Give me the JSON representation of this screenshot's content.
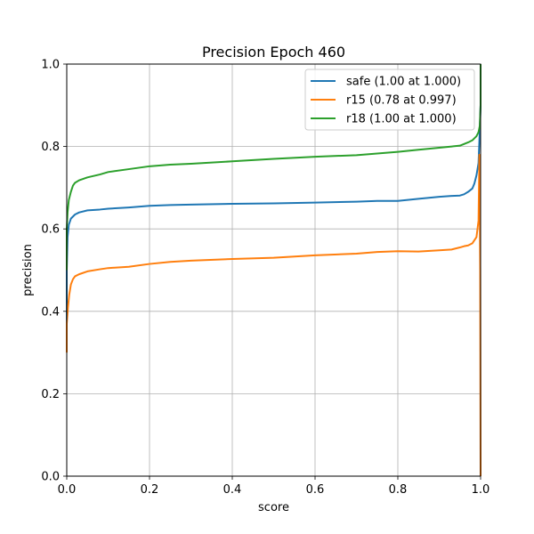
{
  "chart_data": {
    "type": "line",
    "title": "Precision Epoch 460",
    "xlabel": "score",
    "ylabel": "precision",
    "xlim": [
      0,
      1
    ],
    "ylim": [
      0,
      1
    ],
    "xticks": [
      "0.0",
      "0.2",
      "0.4",
      "0.6",
      "0.8",
      "1.0"
    ],
    "yticks": [
      "0.0",
      "0.2",
      "0.4",
      "0.6",
      "0.8",
      "1.0"
    ],
    "grid": true,
    "legend_position": "top-right",
    "series": [
      {
        "name": "safe (1.00 at 1.000)",
        "color": "#1f77b4",
        "x": [
          0.0,
          0.0,
          0.002,
          0.005,
          0.01,
          0.02,
          0.03,
          0.05,
          0.08,
          0.1,
          0.15,
          0.2,
          0.25,
          0.3,
          0.4,
          0.5,
          0.6,
          0.7,
          0.75,
          0.8,
          0.85,
          0.9,
          0.93,
          0.95,
          0.96,
          0.97,
          0.98,
          0.985,
          0.99,
          0.995,
          0.998,
          1.0,
          1.0
        ],
        "y": [
          0.35,
          0.5,
          0.58,
          0.61,
          0.625,
          0.635,
          0.64,
          0.645,
          0.647,
          0.649,
          0.652,
          0.656,
          0.658,
          0.659,
          0.661,
          0.662,
          0.664,
          0.666,
          0.668,
          0.668,
          0.673,
          0.678,
          0.68,
          0.681,
          0.684,
          0.69,
          0.698,
          0.71,
          0.73,
          0.76,
          0.84,
          0.9,
          1.0
        ]
      },
      {
        "name": "r15 (0.78 at 0.997)",
        "color": "#ff7f0e",
        "x": [
          0.0,
          0.0,
          0.003,
          0.006,
          0.01,
          0.015,
          0.02,
          0.03,
          0.05,
          0.08,
          0.1,
          0.15,
          0.2,
          0.25,
          0.3,
          0.4,
          0.5,
          0.6,
          0.7,
          0.75,
          0.8,
          0.85,
          0.9,
          0.93,
          0.95,
          0.96,
          0.97,
          0.98,
          0.99,
          0.995,
          0.997,
          0.999,
          1.0
        ],
        "y": [
          0.3,
          0.37,
          0.41,
          0.44,
          0.465,
          0.478,
          0.485,
          0.49,
          0.497,
          0.502,
          0.505,
          0.508,
          0.515,
          0.52,
          0.523,
          0.527,
          0.53,
          0.536,
          0.54,
          0.544,
          0.546,
          0.545,
          0.548,
          0.55,
          0.555,
          0.558,
          0.56,
          0.565,
          0.58,
          0.62,
          0.78,
          0.5,
          0.0
        ]
      },
      {
        "name": "r18 (1.00 at 1.000)",
        "color": "#2ca02c",
        "x": [
          0.0,
          0.0,
          0.002,
          0.005,
          0.01,
          0.015,
          0.02,
          0.03,
          0.05,
          0.08,
          0.1,
          0.15,
          0.2,
          0.25,
          0.3,
          0.4,
          0.5,
          0.6,
          0.7,
          0.75,
          0.8,
          0.85,
          0.9,
          0.93,
          0.95,
          0.96,
          0.97,
          0.98,
          0.99,
          0.995,
          0.998,
          1.0,
          1.0
        ],
        "y": [
          0.5,
          0.6,
          0.64,
          0.67,
          0.69,
          0.705,
          0.712,
          0.718,
          0.725,
          0.732,
          0.738,
          0.745,
          0.752,
          0.756,
          0.758,
          0.764,
          0.77,
          0.775,
          0.779,
          0.783,
          0.787,
          0.792,
          0.797,
          0.8,
          0.802,
          0.806,
          0.81,
          0.815,
          0.825,
          0.835,
          0.85,
          0.9,
          1.0
        ]
      }
    ]
  }
}
